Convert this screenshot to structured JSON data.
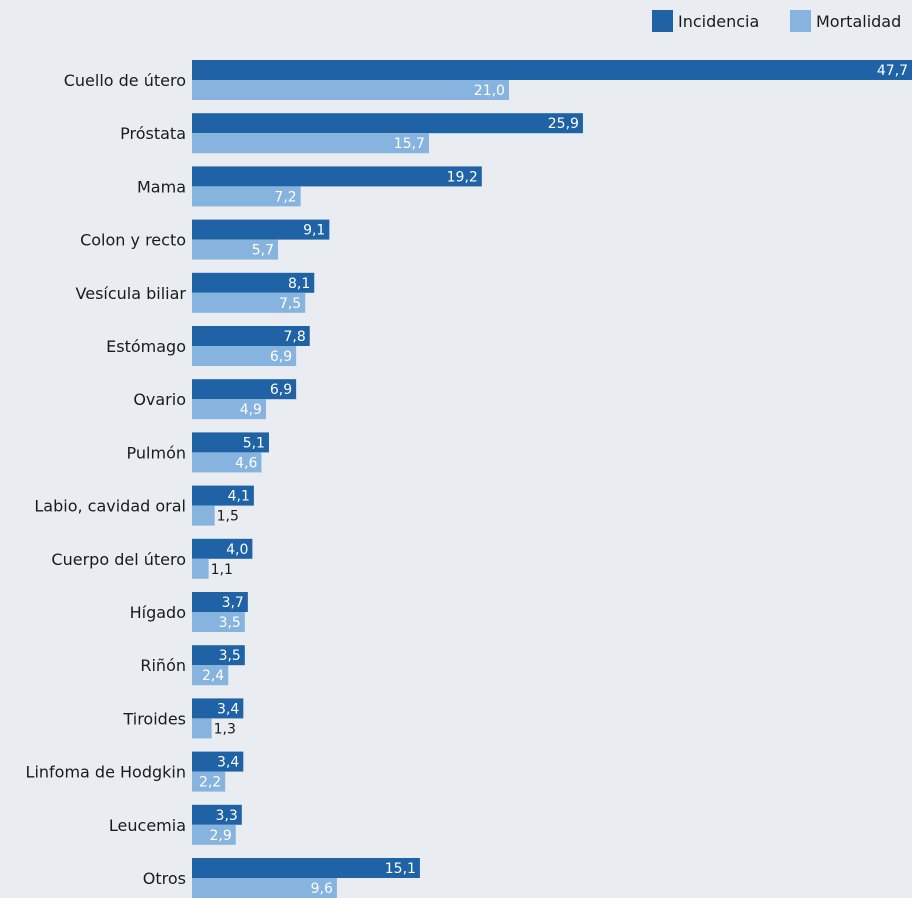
{
  "chart_data": {
    "type": "bar",
    "orientation": "horizontal",
    "categories": [
      "Cuello de útero",
      "Próstata",
      "Mama",
      "Colon y recto",
      "Vesícula biliar",
      "Estómago",
      "Ovario",
      "Pulmón",
      "Labio, cavidad oral",
      "Cuerpo del útero",
      "Hígado",
      "Riñón",
      "Tiroides",
      "Linfoma de Hodgkin",
      "Leucemia",
      "Otros"
    ],
    "series": [
      {
        "name": "Incidencia",
        "values": [
          47.7,
          25.9,
          19.2,
          9.1,
          8.1,
          7.8,
          6.9,
          5.1,
          4.1,
          4.0,
          3.7,
          3.5,
          3.4,
          3.4,
          3.3,
          15.1
        ],
        "labels": [
          "47,7",
          "25,9",
          "19,2",
          "9,1",
          "8,1",
          "7,8",
          "6,9",
          "5,1",
          "4,1",
          "4,0",
          "3,7",
          "3,5",
          "3,4",
          "3,4",
          "3,3",
          "15,1"
        ],
        "color": "#1f63a6"
      },
      {
        "name": "Mortalidad",
        "values": [
          21.0,
          15.7,
          7.2,
          5.7,
          7.5,
          6.9,
          4.9,
          4.6,
          1.5,
          1.1,
          3.5,
          2.4,
          1.3,
          2.2,
          2.9,
          9.6
        ],
        "labels": [
          "21,0",
          "15,7",
          "7,2",
          "5,7",
          "7,5",
          "6,9",
          "4,9",
          "4,6",
          "1,5",
          "1,1",
          "3,5",
          "2,4",
          "1,3",
          "2,2",
          "2,9",
          "9,6"
        ],
        "color": "#86b4de"
      }
    ],
    "legend_position": "top-right",
    "grid": false,
    "xlim": [
      0,
      47.7
    ]
  },
  "colors": {
    "background": "#e9edf1",
    "text": "#1a1a1a",
    "label_inside": "#ffffff"
  }
}
